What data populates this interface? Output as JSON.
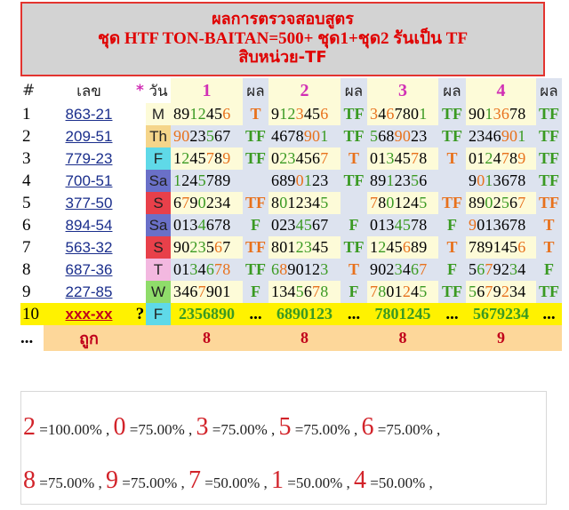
{
  "header": {
    "line1": "ผลการตรวจสอบสูตร",
    "line2": "ชุด HTF TON-BAITAN=500+ ชุด1+ชุด2 รันเป็น TF",
    "line3": "สิบหน่วย-TF"
  },
  "table": {
    "headers": {
      "idx": "#",
      "num": "เลข",
      "star": "*",
      "day": "วัน",
      "set1": "1",
      "res1": "ผล",
      "set2": "2",
      "res2": "ผล",
      "set3": "3",
      "res3": "ผล",
      "set4": "4",
      "res4": "ผล"
    },
    "rows": [
      {
        "idx": "1",
        "num": "863-21",
        "day": "M",
        "dayColor": "#fdfbd8",
        "s1": [
          [
            "8912456",
            "k"
          ],
          [
            "",
            ""
          ]
        ],
        "s1p": [
          [
            "8912456",
            "k"
          ]
        ],
        "r1": "T",
        "r1c": "#e8711c",
        "s2": "9123456",
        "r2": "TF",
        "r2c": "#3a9a22",
        "s3": "3467801",
        "r3": "TF",
        "r3c": "#3a9a22",
        "s4": "9013678",
        "r4": "TF",
        "r4c": "#3a9a22"
      },
      {
        "idx": "2",
        "num": "209-51",
        "day": "Th",
        "dayColor": "#f5d58a",
        "s1": "9023567",
        "r1": "TF",
        "r1c": "#3a9a22",
        "s2": "4678901",
        "r2": "TF",
        "r2c": "#3a9a22",
        "s3": "5689023",
        "r3": "TF",
        "r3c": "#3a9a22",
        "s4": "2346901",
        "r4": "TF",
        "r4c": "#3a9a22"
      },
      {
        "idx": "3",
        "num": "779-23",
        "day": "F",
        "dayColor": "#5fd9e8",
        "s1": "1245789",
        "r1": "TF",
        "r1c": "#3a9a22",
        "s2": "0234567",
        "r2": "T",
        "r2c": "#e8711c",
        "s3": "0134578",
        "r3": "T",
        "r3c": "#e8711c",
        "s4": "0124789",
        "r4": "TF",
        "r4c": "#3a9a22"
      },
      {
        "idx": "4",
        "num": "700-51",
        "day": "Sa",
        "dayColor": "#6a70c8",
        "s1": "1245789",
        "r1": "",
        "r1c": "#3a9a22",
        "s2": "6890123",
        "r2": "TF",
        "r2c": "#3a9a22",
        "s3": "8912356",
        "r3": "",
        "r3c": "#3a9a22",
        "s4": "9013678",
        "r4": "TF",
        "r4c": "#3a9a22"
      },
      {
        "idx": "5",
        "num": "377-50",
        "day": "S",
        "dayColor": "#e8404a",
        "s1": "6790234",
        "r1": "TF",
        "r1c": "#e8711c",
        "s2": "8012345",
        "r2": "",
        "r2c": "#3a9a22",
        "s3": "7801245",
        "r3": "TF",
        "r3c": "#e8711c",
        "s4": "8902567",
        "r4": "TF",
        "r4c": "#e8711c"
      },
      {
        "idx": "6",
        "num": "894-54",
        "day": "Sa",
        "dayColor": "#6a70c8",
        "s1": "0134678",
        "r1": "F",
        "r1c": "#3a9a22",
        "s2": "0234567",
        "r2": "F",
        "r2c": "#3a9a22",
        "s3": "0134578",
        "r3": "F",
        "r3c": "#3a9a22",
        "s4": "9013678",
        "r4": "T",
        "r4c": "#e8711c"
      },
      {
        "idx": "7",
        "num": "563-32",
        "day": "S",
        "dayColor": "#e8404a",
        "s1": "9023567",
        "r1": "TF",
        "r1c": "#e8711c",
        "s2": "8012345",
        "r2": "TF",
        "r2c": "#3a9a22",
        "s3": "1245689",
        "r3": "T",
        "r3c": "#e8711c",
        "s4": "7891456",
        "r4": "T",
        "r4c": "#e8711c"
      },
      {
        "idx": "8",
        "num": "687-36",
        "day": "T",
        "dayColor": "#f3b8e0",
        "s1": "0134678",
        "r1": "TF",
        "r1c": "#3a9a22",
        "s2": "6890123",
        "r2": "T",
        "r2c": "#e8711c",
        "s3": "9023467",
        "r3": "F",
        "r3c": "#3a9a22",
        "s4": "5679234",
        "r4": "F",
        "r4c": "#3a9a22"
      },
      {
        "idx": "9",
        "num": "227-85",
        "day": "W",
        "dayColor": "#8fdc6a",
        "s1": "3467901",
        "r1": "F",
        "r1c": "#3a9a22",
        "s2": "1345678",
        "r2": "F",
        "r2c": "#3a9a22",
        "s3": "7801245",
        "r3": "TF",
        "r3c": "#3a9a22",
        "s4": "5679234",
        "r4": "TF",
        "r4c": "#3a9a22"
      }
    ],
    "row10": {
      "idx": "10",
      "num": "xxx-xx",
      "star": "?",
      "day": "F",
      "s1": "2356890",
      "r1": "...",
      "s2": "6890123",
      "r2": "...",
      "s3": "7801245",
      "r3": "...",
      "s4": "5679234",
      "r4": "..."
    },
    "totals": {
      "idx": "...",
      "label": "ถูก",
      "c1": "8",
      "c2": "8",
      "c3": "8",
      "c4": "9"
    }
  },
  "summary": {
    "line1": [
      {
        "d": "2",
        "p": "=100.00%"
      },
      {
        "d": "0",
        "p": "=75.00%"
      },
      {
        "d": "3",
        "p": "=75.00%"
      },
      {
        "d": "5",
        "p": "=75.00%"
      },
      {
        "d": "6",
        "p": "=75.00%"
      }
    ],
    "line2": [
      {
        "d": "8",
        "p": "=75.00%"
      },
      {
        "d": "9",
        "p": "=75.00%"
      },
      {
        "d": "7",
        "p": "=50.00%"
      },
      {
        "d": "1",
        "p": "=50.00%"
      },
      {
        "d": "4",
        "p": "=50.00%"
      }
    ]
  },
  "colors": {
    "header_text": "#e00000",
    "green": "#3a9a22",
    "orange": "#e8711c",
    "pct_digit": "#d2232a"
  }
}
